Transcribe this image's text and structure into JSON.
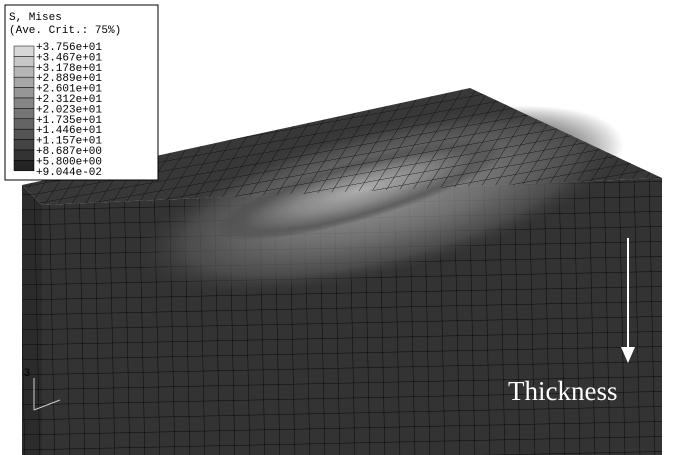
{
  "legend": {
    "title": "S, Mises",
    "subtitle": "(Ave. Crit.: 75%)",
    "labels": [
      "+3.756e+01",
      "+3.467e+01",
      "+3.178e+01",
      "+2.889e+01",
      "+2.601e+01",
      "+2.312e+01",
      "+2.023e+01",
      "+1.735e+01",
      "+1.446e+01",
      "+1.157e+01",
      "+8.687e+00",
      "+5.800e+00",
      "+9.044e-02"
    ]
  },
  "annotation": "Thickness",
  "triad": {
    "axis_label": "3"
  }
}
